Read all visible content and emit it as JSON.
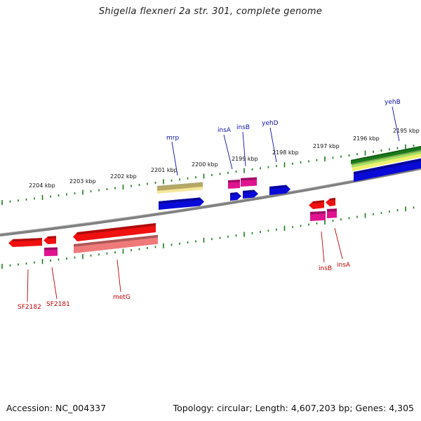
{
  "title": "Shigella flexneri 2a str. 301, complete genome",
  "footer": {
    "accession": "Accession: NC_004337",
    "summary": "Topology: circular; Length: 4,607,203 bp; Genes: 4,305"
  },
  "colors": {
    "backbone": "#808080",
    "tick_major": "#1a7a1a",
    "tick_minor": "#1a7a1a",
    "label_top": "#1010b0",
    "label_bottom": "#c00000",
    "gene_blue": "#0a0ad8",
    "gene_magenta": "#e0138e",
    "gene_red": "#f01010",
    "gene_salmon": "#f07a7a",
    "gene_yellow": "#f3e89c",
    "gene_dark_green": "#1a7a1a",
    "gene_light_green": "#a8e060"
  },
  "ticks": {
    "top_labels": [
      "2201 kbp",
      "2200 kbp",
      "2199 kbp",
      "2198 kbp",
      "2197 kbp",
      "2196 kbp",
      "2195 kbp"
    ],
    "bottom_labels": [
      "2204 kbp",
      "2203 kbp",
      "2202 kbp"
    ]
  },
  "gene_labels": {
    "top": [
      "mrp",
      "insA",
      "insB",
      "yehD",
      "yehB"
    ],
    "bottom": [
      "SF2182",
      "SF2181",
      "metG",
      "insB",
      "insA"
    ]
  }
}
